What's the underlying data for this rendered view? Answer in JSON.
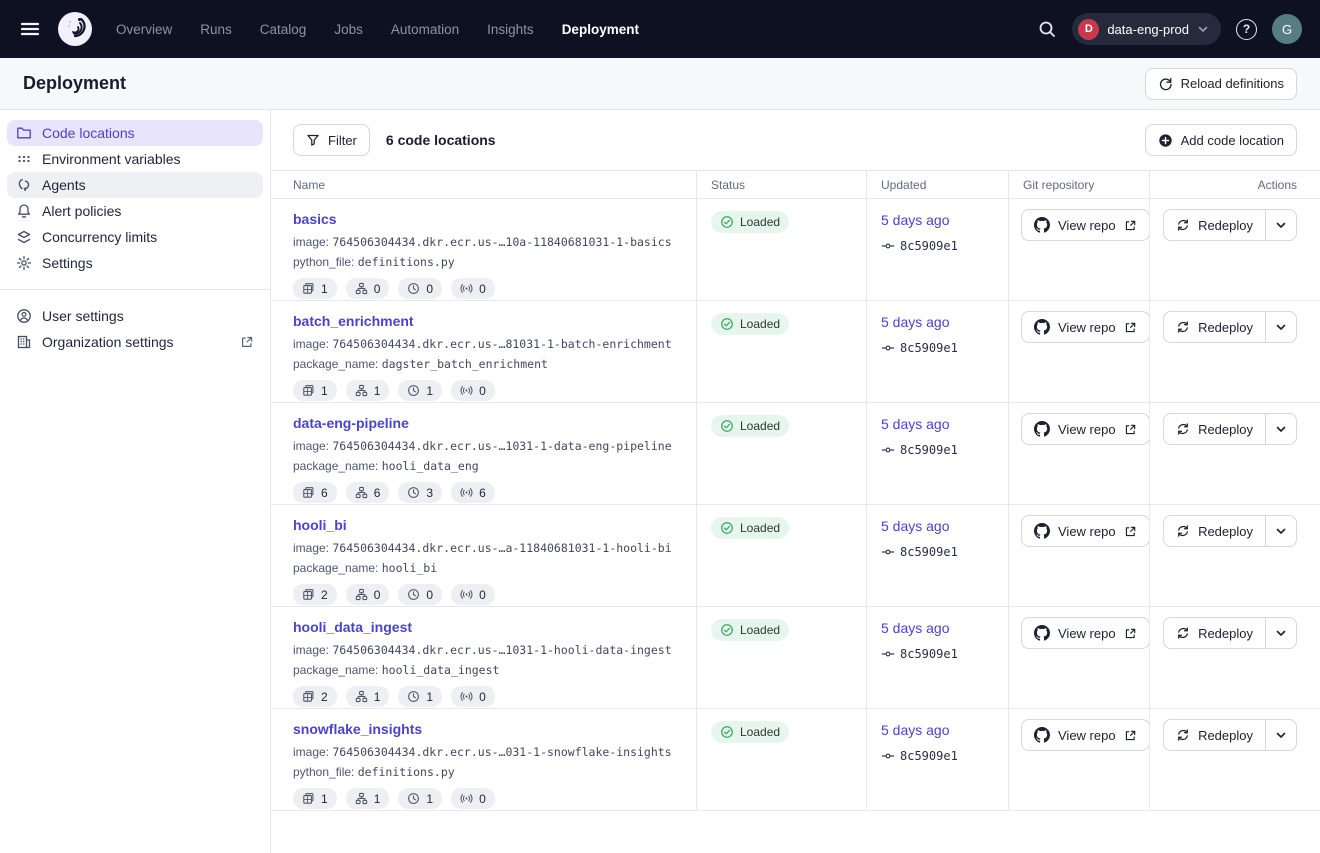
{
  "colors": {
    "accent": "#4a43cf",
    "topnav_bg": "#0e1122",
    "status_loaded_bg": "#e7f6ec",
    "status_loaded_icon": "#3aa865",
    "deployment_badge_bg": "#c73a4e",
    "avatar_bg": "#567e82",
    "active_sidebar_bg": "#e7e4fb"
  },
  "topnav": {
    "items": [
      {
        "label": "Overview",
        "active": false
      },
      {
        "label": "Runs",
        "active": false
      },
      {
        "label": "Catalog",
        "active": false
      },
      {
        "label": "Jobs",
        "active": false
      },
      {
        "label": "Automation",
        "active": false
      },
      {
        "label": "Insights",
        "active": false
      },
      {
        "label": "Deployment",
        "active": true
      }
    ],
    "deployment_switcher": {
      "initial": "D",
      "label": "data-eng-prod"
    },
    "help_label": "?",
    "avatar_initial": "G"
  },
  "page": {
    "title": "Deployment",
    "reload_button_label": "Reload definitions"
  },
  "sidebar": {
    "items": [
      {
        "label": "Code locations",
        "icon": "folder",
        "state": "active"
      },
      {
        "label": "Environment variables",
        "icon": "envdots",
        "state": ""
      },
      {
        "label": "Agents",
        "icon": "agent",
        "state": "hover"
      },
      {
        "label": "Alert policies",
        "icon": "bell",
        "state": ""
      },
      {
        "label": "Concurrency limits",
        "icon": "layers",
        "state": ""
      },
      {
        "label": "Settings",
        "icon": "gear",
        "state": ""
      }
    ],
    "secondary": [
      {
        "label": "User settings",
        "icon": "user",
        "external": false
      },
      {
        "label": "Organization settings",
        "icon": "building",
        "external": true
      }
    ]
  },
  "toolbar": {
    "filter_label": "Filter",
    "count_label": "6 code locations",
    "add_label": "Add code location"
  },
  "table": {
    "headers": [
      "Name",
      "Status",
      "Updated",
      "Git repository",
      "Actions"
    ],
    "view_repo_label": "View repo",
    "redeploy_label": "Redeploy",
    "badge_icons": [
      "jobs",
      "asset-graph",
      "schedules",
      "sensors"
    ],
    "rows": [
      {
        "name": "basics",
        "meta": [
          {
            "label": "image:",
            "value": "764506304434.dkr.ecr.us-…10a-11840681031-1-basics"
          },
          {
            "label": "python_file:",
            "value": "definitions.py"
          }
        ],
        "counts": [
          "1",
          "0",
          "0",
          "0"
        ],
        "status": "Loaded",
        "updated": "5 days ago",
        "commit": "8c5909e1"
      },
      {
        "name": "batch_enrichment",
        "meta": [
          {
            "label": "image:",
            "value": "764506304434.dkr.ecr.us-…81031-1-batch-enrichment"
          },
          {
            "label": "package_name:",
            "value": "dagster_batch_enrichment"
          }
        ],
        "counts": [
          "1",
          "1",
          "1",
          "0"
        ],
        "status": "Loaded",
        "updated": "5 days ago",
        "commit": "8c5909e1"
      },
      {
        "name": "data-eng-pipeline",
        "meta": [
          {
            "label": "image:",
            "value": "764506304434.dkr.ecr.us-…1031-1-data-eng-pipeline"
          },
          {
            "label": "package_name:",
            "value": "hooli_data_eng"
          }
        ],
        "counts": [
          "6",
          "6",
          "3",
          "6"
        ],
        "status": "Loaded",
        "updated": "5 days ago",
        "commit": "8c5909e1"
      },
      {
        "name": "hooli_bi",
        "meta": [
          {
            "label": "image:",
            "value": "764506304434.dkr.ecr.us-…a-11840681031-1-hooli-bi"
          },
          {
            "label": "package_name:",
            "value": "hooli_bi"
          }
        ],
        "counts": [
          "2",
          "0",
          "0",
          "0"
        ],
        "status": "Loaded",
        "updated": "5 days ago",
        "commit": "8c5909e1"
      },
      {
        "name": "hooli_data_ingest",
        "meta": [
          {
            "label": "image:",
            "value": "764506304434.dkr.ecr.us-…1031-1-hooli-data-ingest"
          },
          {
            "label": "package_name:",
            "value": "hooli_data_ingest"
          }
        ],
        "counts": [
          "2",
          "1",
          "1",
          "0"
        ],
        "status": "Loaded",
        "updated": "5 days ago",
        "commit": "8c5909e1"
      },
      {
        "name": "snowflake_insights",
        "meta": [
          {
            "label": "image:",
            "value": "764506304434.dkr.ecr.us-…031-1-snowflake-insights"
          },
          {
            "label": "python_file:",
            "value": "definitions.py"
          }
        ],
        "counts": [
          "1",
          "1",
          "1",
          "0"
        ],
        "status": "Loaded",
        "updated": "5 days ago",
        "commit": "8c5909e1"
      }
    ]
  }
}
